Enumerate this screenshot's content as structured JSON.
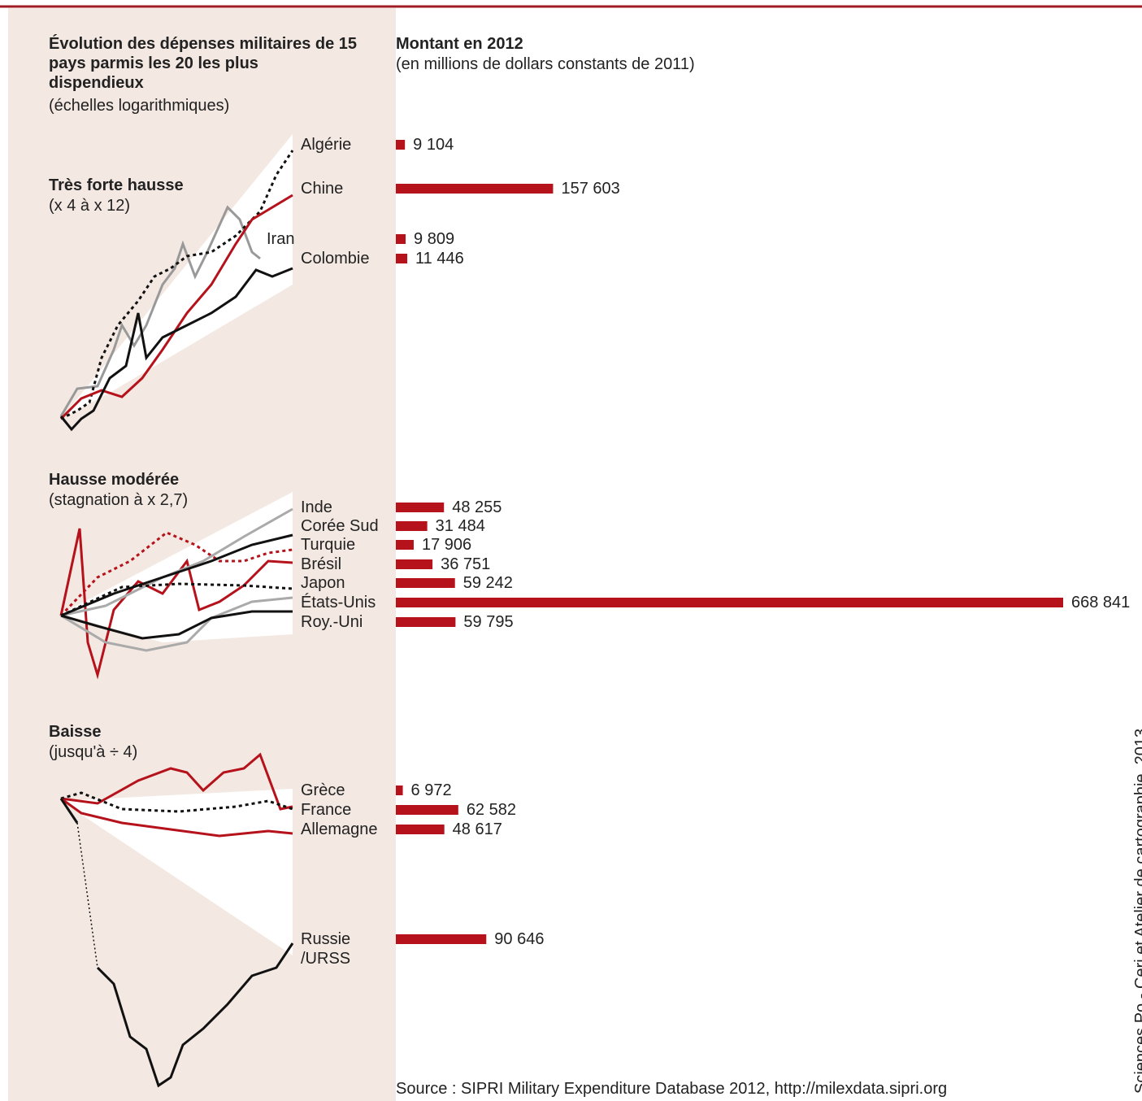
{
  "chart_data": {
    "type": "bar",
    "title": "Évolution des dépenses militaires de 15 pays parmis les 20 les plus dispendieux",
    "title_note": "(échelles logarithmiques)",
    "value_title": "Montant en 2012",
    "value_subtitle": "(en millions de dollars constants de 2011)",
    "groups": [
      {
        "title": "Très forte hausse",
        "subtitle": "(x 4 à x 12)"
      },
      {
        "title": "Hausse modérée",
        "subtitle": "(stagnation à x 2,7)"
      },
      {
        "title": "Baisse",
        "subtitle": "(jusqu'à ÷ 4)"
      }
    ],
    "categories": [
      "Algérie",
      "Chine",
      "Iran",
      "Colombie",
      "Inde",
      "Corée Sud",
      "Turquie",
      "Brésil",
      "Japon",
      "États-Unis",
      "Roy.-Uni",
      "Grèce",
      "France",
      "Allemagne",
      "Russie /URSS"
    ],
    "values": [
      9104,
      157603,
      9809,
      11446,
      48255,
      31484,
      17906,
      36751,
      59242,
      668841,
      59795,
      6972,
      62582,
      48617,
      90646
    ],
    "value_labels": [
      "9 104",
      "157 603",
      "9 809",
      "11 446",
      "48 255",
      "31 484",
      "17 906",
      "36 751",
      "59 242",
      "668 841",
      "59 795",
      "6 972",
      "62 582",
      "48 617",
      "90 646"
    ],
    "color": "#b5121b",
    "source": "Source : SIPRI Military Expenditure Database 2012, http://milexdata.sipri.org",
    "credit": "Sciences Po - Ceri et Atelier de cartographie, 2013"
  }
}
